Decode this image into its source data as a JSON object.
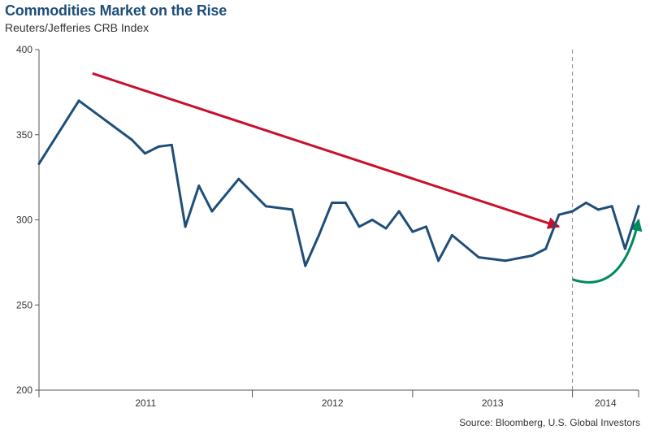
{
  "title": "Commodities Market on the Rise",
  "subtitle": "Reuters/Jefferies CRB Index",
  "source": "Source: Bloomberg, U.S. Global Investors",
  "colors": {
    "series": "#1f4e79",
    "down_arrow": "#c8102e",
    "up_arrow": "#008a5e",
    "axis": "#555555",
    "divider": "#888888"
  },
  "chart_data": {
    "type": "line",
    "title": "Commodities Market on the Rise",
    "subtitle": "Reuters/Jefferies CRB Index",
    "ylim": [
      200,
      400
    ],
    "y_ticks": [
      200,
      250,
      300,
      350,
      400
    ],
    "x_range": [
      "2010-09-01",
      "2014-06-01"
    ],
    "x_ticks": [
      "2011",
      "2012",
      "2013",
      "2014"
    ],
    "divider_date": "2014-01-01",
    "grid": false,
    "series": [
      {
        "x": [
          "2010-09-01",
          "2010-12-01",
          "2011-04-01",
          "2011-05-01",
          "2011-06-01",
          "2011-07-01",
          "2011-08-01",
          "2011-09-01",
          "2011-10-01",
          "2011-12-01",
          "2012-02-01",
          "2012-04-01",
          "2012-05-01",
          "2012-06-01",
          "2012-07-01",
          "2012-08-01",
          "2012-09-01",
          "2012-10-01",
          "2012-11-01",
          "2012-12-01",
          "2013-01-01",
          "2013-02-01",
          "2013-03-01",
          "2013-04-01",
          "2013-06-01",
          "2013-08-01",
          "2013-10-01",
          "2013-11-01",
          "2013-12-01",
          "2014-01-01",
          "2014-02-01",
          "2014-03-01",
          "2014-04-01",
          "2014-05-01",
          "2014-06-01"
        ],
        "values": [
          333,
          370,
          347,
          339,
          343,
          344,
          296,
          320,
          305,
          324,
          308,
          306,
          273,
          291,
          310,
          310,
          296,
          300,
          295,
          305,
          293,
          296,
          276,
          291,
          278,
          276,
          279,
          283,
          303,
          305,
          310,
          306,
          308,
          283,
          308
        ]
      }
    ],
    "annotations": [
      {
        "type": "arrow",
        "direction": "down",
        "from": {
          "x": "2011-01-01",
          "y": 386
        },
        "to": {
          "x": "2013-12-01",
          "y": 296
        }
      },
      {
        "type": "arrow",
        "direction": "up",
        "from": {
          "x": "2014-01-01",
          "y": 265
        },
        "to": {
          "x": "2014-06-01",
          "y": 300
        }
      }
    ]
  }
}
